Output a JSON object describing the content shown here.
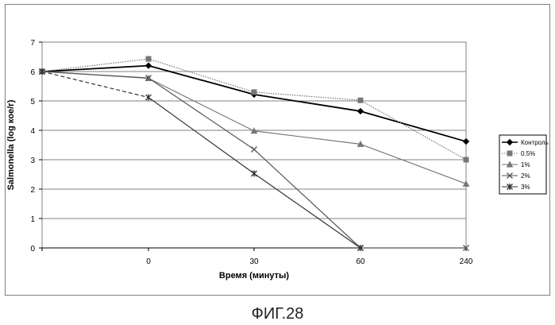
{
  "chart_data": {
    "type": "line",
    "title": "",
    "xlabel": "Время (минуты)",
    "ylabel": "Salmonella (log кое/г)",
    "categories": [
      "",
      "0",
      "30",
      "60",
      "240"
    ],
    "ylim": [
      0,
      7
    ],
    "yticks": [
      0,
      1,
      2,
      3,
      4,
      5,
      6,
      7
    ],
    "grid": "horizontal",
    "legend_position": "right",
    "series": [
      {
        "name": "Контроль",
        "values": [
          6.0,
          6.2,
          5.22,
          4.65,
          3.62
        ],
        "color": "#000000",
        "marker": "diamond",
        "dash": "solid"
      },
      {
        "name": "0.5%",
        "values": [
          6.0,
          6.43,
          5.3,
          5.02,
          3.0
        ],
        "color": "#777777",
        "marker": "square",
        "dash": "dotted"
      },
      {
        "name": "1%",
        "values": [
          6.0,
          5.77,
          3.98,
          3.53,
          2.18
        ],
        "color": "#777777",
        "marker": "triangle",
        "dash": "solid"
      },
      {
        "name": "2%",
        "values": [
          6.0,
          5.78,
          3.35,
          0.0,
          0.0
        ],
        "color": "#555555",
        "marker": "x",
        "dash": "solid"
      },
      {
        "name": "3%",
        "values": [
          6.0,
          5.12,
          2.53,
          0.0,
          null
        ],
        "color": "#333333",
        "marker": "star",
        "dash": "solid",
        "first_segment_dash": "dashed"
      }
    ]
  },
  "caption": "ФИГ.28"
}
